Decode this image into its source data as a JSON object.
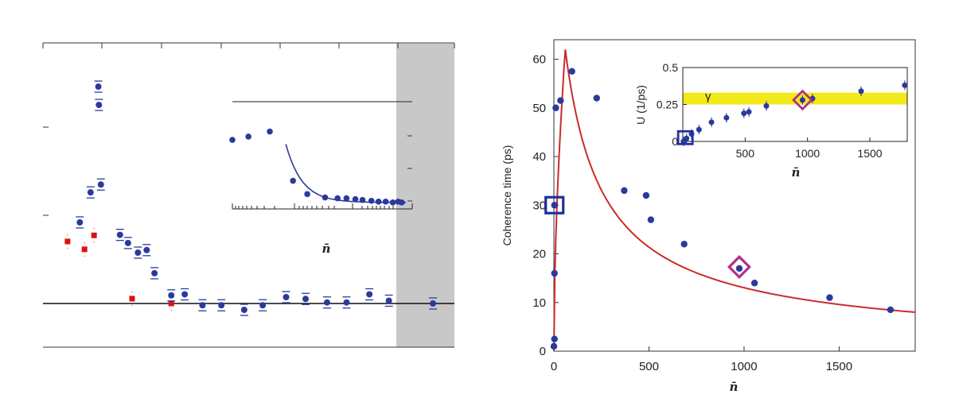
{
  "colors": {
    "data_points": "#2a3a9c",
    "fit_curve": "#cc2a2a",
    "red_markers": "#e01010",
    "highlight_band": "#f2ea1a",
    "square_marker": "#2030a0",
    "diamond_marker": "#b0308a",
    "shaded_region": "#c8c8c8"
  },
  "chart_data": [
    {
      "type": "scatter",
      "panel": "left",
      "shaded_region": "right end of axis",
      "xlabel_inset": "n̄",
      "series": [
        {
          "color": "blue",
          "values_relative": [
            {
              "x": 0.284,
              "y": 0.853
            },
            {
              "x": 0.287,
              "y": 0.781
            },
            {
              "x": 0.189,
              "y": 0.319
            },
            {
              "x": 0.244,
              "y": 0.437
            },
            {
              "x": 0.297,
              "y": 0.468
            },
            {
              "x": 0.395,
              "y": 0.27
            },
            {
              "x": 0.436,
              "y": 0.238
            },
            {
              "x": 0.487,
              "y": 0.2
            },
            {
              "x": 0.532,
              "y": 0.21
            },
            {
              "x": 0.572,
              "y": 0.119
            },
            {
              "x": 0.658,
              "y": 0.032
            },
            {
              "x": 0.727,
              "y": 0.036
            },
            {
              "x": 0.818,
              "y": -0.007
            },
            {
              "x": 0.915,
              "y": -0.007
            },
            {
              "x": 1.032,
              "y": -0.025
            },
            {
              "x": 1.127,
              "y": -0.007
            },
            {
              "x": 1.247,
              "y": 0.025
            },
            {
              "x": 1.347,
              "y": 0.018
            },
            {
              "x": 1.457,
              "y": 0.004
            },
            {
              "x": 1.557,
              "y": 0.004
            },
            {
              "x": 1.674,
              "y": 0.036
            },
            {
              "x": 1.774,
              "y": 0.011
            },
            {
              "x": 2.0,
              "y": 0.0
            }
          ]
        },
        {
          "color": "red",
          "values_relative": [
            {
              "x": 0.126,
              "y": 0.244
            },
            {
              "x": 0.213,
              "y": 0.213
            },
            {
              "x": 0.262,
              "y": 0.268
            },
            {
              "x": 0.457,
              "y": 0.019
            },
            {
              "x": 0.658,
              "y": 0.0
            }
          ]
        }
      ],
      "inset": {
        "points_relative": [
          {
            "x": 0.0,
            "y": 0.78
          },
          {
            "x": 0.09,
            "y": 0.82
          },
          {
            "x": 0.21,
            "y": 0.88
          },
          {
            "x": 0.34,
            "y": 0.29
          },
          {
            "x": 0.42,
            "y": 0.13
          },
          {
            "x": 0.52,
            "y": 0.09
          },
          {
            "x": 0.59,
            "y": 0.08
          },
          {
            "x": 0.64,
            "y": 0.08
          },
          {
            "x": 0.69,
            "y": 0.07
          },
          {
            "x": 0.73,
            "y": 0.06
          },
          {
            "x": 0.78,
            "y": 0.05
          },
          {
            "x": 0.82,
            "y": 0.04
          },
          {
            "x": 0.86,
            "y": 0.04
          },
          {
            "x": 0.9,
            "y": 0.03
          },
          {
            "x": 0.93,
            "y": 0.04
          },
          {
            "x": 0.95,
            "y": 0.03
          }
        ]
      }
    },
    {
      "type": "scatter",
      "panel": "right",
      "xlabel": "n̄",
      "ylabel": "Coherence time (ps)",
      "xlim": [
        0,
        1900
      ],
      "ylim": [
        0,
        64
      ],
      "xticks": [
        "0",
        "500",
        "1000",
        "1500"
      ],
      "yticks": [
        "0",
        "10",
        "20",
        "30",
        "40",
        "50",
        "60"
      ],
      "points": [
        {
          "x": 0,
          "y": 1
        },
        {
          "x": 3,
          "y": 2.5
        },
        {
          "x": 3,
          "y": 16
        },
        {
          "x": 3,
          "y": 30
        },
        {
          "x": 10,
          "y": 50
        },
        {
          "x": 35,
          "y": 51.5
        },
        {
          "x": 95,
          "y": 57.5
        },
        {
          "x": 225,
          "y": 52
        },
        {
          "x": 370,
          "y": 33
        },
        {
          "x": 485,
          "y": 32
        },
        {
          "x": 510,
          "y": 27
        },
        {
          "x": 685,
          "y": 22
        },
        {
          "x": 975,
          "y": 17
        },
        {
          "x": 1055,
          "y": 14
        },
        {
          "x": 1450,
          "y": 11
        },
        {
          "x": 1770,
          "y": 8.5
        }
      ],
      "fit_curve": {
        "color": "red",
        "peak_x": 60,
        "peak_y": 62
      },
      "highlight_square": {
        "x": 3,
        "y": 30
      },
      "highlight_diamond": {
        "x": 975,
        "y": 17.3
      },
      "inset": {
        "xlabel": "n̄",
        "ylabel": "U (1/ps)",
        "xlim": [
          0,
          1800
        ],
        "ylim": [
          0,
          0.5
        ],
        "xticks": [
          "500",
          "1000",
          "1500"
        ],
        "yticks": [
          "0",
          "0.25",
          "0.5"
        ],
        "band_label": "γ",
        "band_range": [
          0.25,
          0.33
        ],
        "points": [
          {
            "x": 5,
            "y": 0.0
          },
          {
            "x": 30,
            "y": 0.02
          },
          {
            "x": 70,
            "y": 0.05
          },
          {
            "x": 130,
            "y": 0.08
          },
          {
            "x": 230,
            "y": 0.13
          },
          {
            "x": 350,
            "y": 0.16
          },
          {
            "x": 490,
            "y": 0.19
          },
          {
            "x": 530,
            "y": 0.2
          },
          {
            "x": 670,
            "y": 0.24
          },
          {
            "x": 960,
            "y": 0.28
          },
          {
            "x": 1040,
            "y": 0.29
          },
          {
            "x": 1430,
            "y": 0.34
          },
          {
            "x": 1780,
            "y": 0.38
          }
        ],
        "highlight_square": {
          "x": 20,
          "y": 0.02
        },
        "highlight_diamond": {
          "x": 960,
          "y": 0.28
        }
      }
    }
  ]
}
